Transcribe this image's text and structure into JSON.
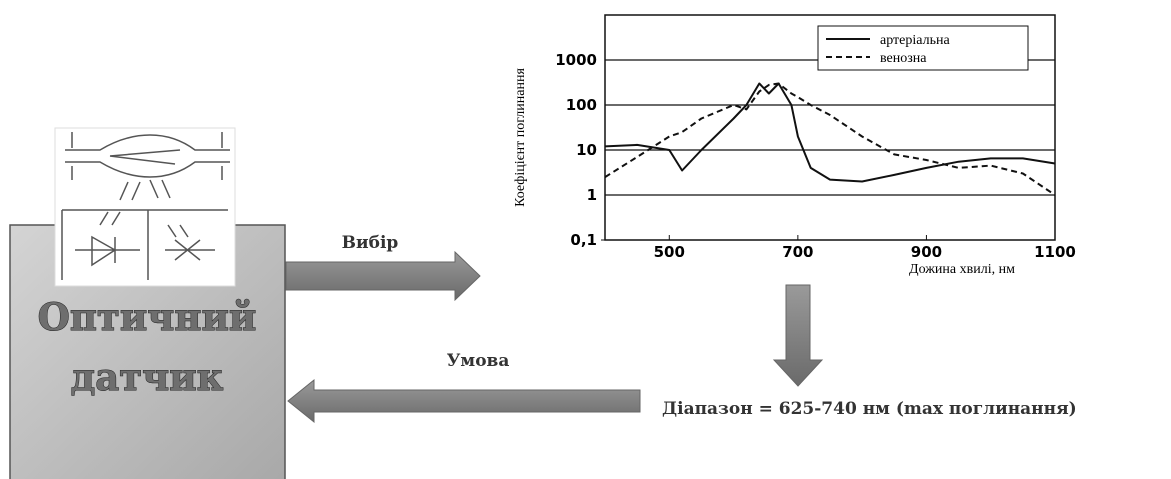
{
  "diagram": {
    "sensor_label": [
      "Оптичний",
      "датчик"
    ],
    "arrow_select": "Вибір",
    "arrow_condition": "Умова",
    "result": "Діапазон = 625-740 нм (max поглинання)"
  },
  "chart_data": {
    "type": "line",
    "x_label": "Дожина хвилі, нм",
    "y_label": "Коефіцієнт поглинання",
    "x": [
      400,
      450,
      500,
      520,
      550,
      600,
      620,
      640,
      655,
      670,
      690,
      700,
      720,
      750,
      800,
      850,
      900,
      950,
      1000,
      1050,
      1100
    ],
    "series": [
      {
        "name": "артеріальна",
        "color": "#111111",
        "style": "solid",
        "values": [
          12,
          13,
          10,
          3.5,
          10,
          50,
          100,
          300,
          180,
          300,
          100,
          20,
          4,
          2.2,
          2,
          2.8,
          4,
          5.5,
          6.5,
          6.5,
          5
        ]
      },
      {
        "name": "венозна",
        "color": "#111111",
        "style": "dashed",
        "values": [
          2.5,
          7,
          20,
          25,
          50,
          100,
          80,
          200,
          280,
          300,
          180,
          150,
          100,
          60,
          20,
          8,
          6,
          4,
          4.5,
          3,
          1
        ]
      }
    ],
    "xlim": [
      400,
      1100
    ],
    "xticks": [
      500,
      700,
      900,
      1100
    ],
    "ylim": [
      0.1,
      10000
    ],
    "yticks": [
      {
        "value": 0.1,
        "label": "0,1"
      },
      1,
      10,
      100,
      1000
    ],
    "yscale": "log",
    "grid": true,
    "legend": "upper right"
  }
}
